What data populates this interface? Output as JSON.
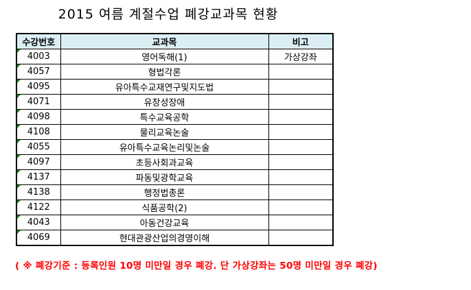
{
  "title": "2015 여름 계절수업 폐강교과목 현황",
  "table": {
    "headers": [
      "수강번호",
      "교과목",
      "비고"
    ],
    "rows": [
      [
        "4003",
        "영어독해(1)",
        "가상강좌"
      ],
      [
        "4057",
        "형법각론",
        ""
      ],
      [
        "4095",
        "유아특수교재연구및지도법",
        ""
      ],
      [
        "4071",
        "유창성장애",
        ""
      ],
      [
        "4098",
        "특수교육공학",
        ""
      ],
      [
        "4108",
        "물리교육논술",
        ""
      ],
      [
        "4055",
        "유아특수교육논리및논술",
        ""
      ],
      [
        "4097",
        "초등사회과교육",
        ""
      ],
      [
        "4137",
        "파동및광학교육",
        ""
      ],
      [
        "4138",
        "행정법총론",
        ""
      ],
      [
        "4122",
        "식품공학(2)",
        ""
      ],
      [
        "4043",
        "아동건강교육",
        ""
      ],
      [
        "4069",
        "현대관광산업의경영이해",
        ""
      ]
    ]
  },
  "note": "( ※ 폐강기준 : 등록인원 10명 미만일 경우 폐강. 단 가상강좌는 50명 미만일 경우 폐강)",
  "colors": {
    "header_bg": "#daeef3",
    "note": "#ff0000",
    "cell_marker": "#1a8a1a"
  }
}
